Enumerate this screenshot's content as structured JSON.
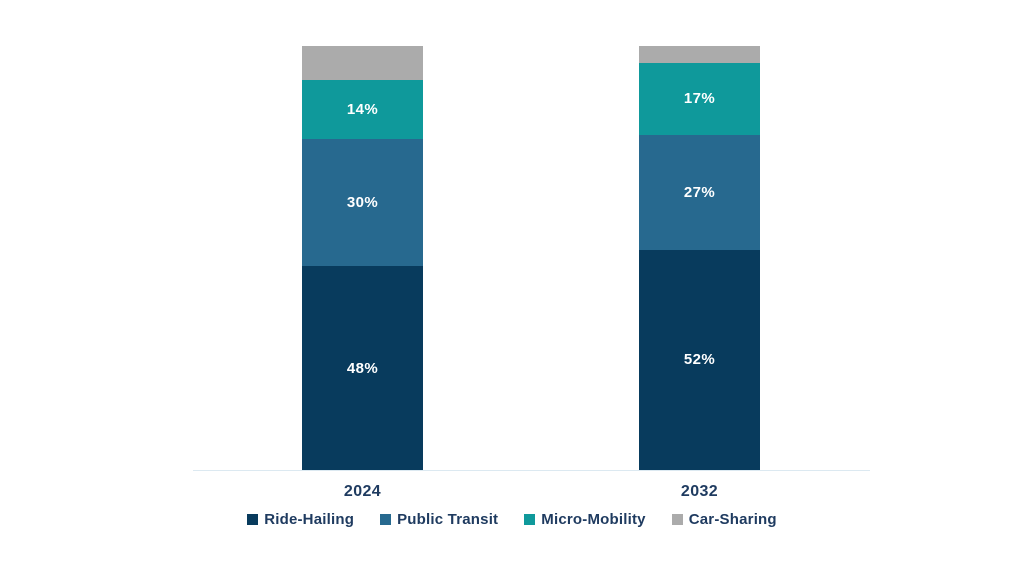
{
  "chart_data": {
    "type": "bar",
    "stacked": true,
    "categories": [
      "2024",
      "2032"
    ],
    "series": [
      {
        "name": "Ride-Hailing",
        "color": "#083b5d",
        "values": [
          48,
          52
        ],
        "labels": [
          "48%",
          "52%"
        ]
      },
      {
        "name": "Public Transit",
        "color": "#27698f",
        "values": [
          30,
          27
        ],
        "labels": [
          "30%",
          "27%"
        ]
      },
      {
        "name": "Micro-Mobility",
        "color": "#0f999b",
        "values": [
          14,
          17
        ],
        "labels": [
          "14%",
          "17%"
        ]
      },
      {
        "name": "Car-Sharing",
        "color": "#ababab",
        "values": [
          8,
          4
        ],
        "labels": [
          "",
          ""
        ]
      }
    ],
    "title": "",
    "xlabel": "",
    "ylabel": "",
    "ylim": [
      0,
      100
    ],
    "grid": false,
    "legend_position": "bottom",
    "value_unit": "%",
    "axis_line_color": "#dce9f1",
    "label_text_color": "#1f3b60",
    "segment_label_color": "#ffffff"
  }
}
